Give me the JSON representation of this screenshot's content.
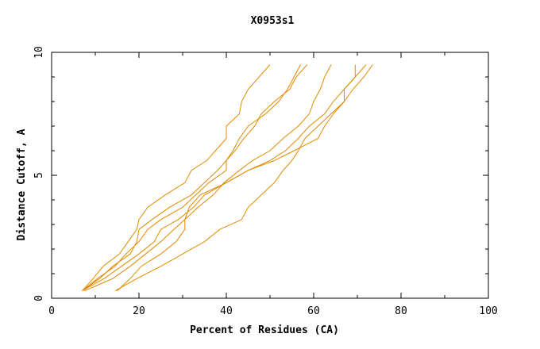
{
  "chart_data": {
    "type": "line",
    "title": "X0953s1",
    "xlabel": "Percent of Residues (CA)",
    "ylabel": "Distance Cutoff, A",
    "xlim": [
      0,
      100
    ],
    "ylim": [
      0,
      10
    ],
    "x_ticks": [
      0,
      20,
      40,
      60,
      80,
      100
    ],
    "y_ticks": [
      0,
      5,
      10
    ],
    "x_tick_labels": [
      "0",
      "20",
      "40",
      "60",
      "80",
      "100"
    ],
    "y_tick_labels": [
      "0",
      "5",
      "10"
    ],
    "grid": false,
    "line_color": "#e08a00",
    "series": [
      {
        "points": [
          [
            7.0,
            0.3
          ],
          [
            9.5,
            0.8
          ],
          [
            11.8,
            1.3
          ],
          [
            15.5,
            1.8
          ],
          [
            17.5,
            2.3
          ],
          [
            19.5,
            2.8
          ],
          [
            20.0,
            3.2
          ],
          [
            22.0,
            3.7
          ],
          [
            26.0,
            4.2
          ],
          [
            30.5,
            4.7
          ],
          [
            32.0,
            5.2
          ],
          [
            35.5,
            5.6
          ],
          [
            37.5,
            6.0
          ],
          [
            40.0,
            6.5
          ],
          [
            40.0,
            7.0
          ],
          [
            43.0,
            7.5
          ],
          [
            43.5,
            8.0
          ],
          [
            45.0,
            8.5
          ],
          [
            47.5,
            9.0
          ],
          [
            50.0,
            9.5
          ]
        ]
      },
      {
        "points": [
          [
            7.0,
            0.3
          ],
          [
            11.0,
            0.8
          ],
          [
            14.0,
            1.3
          ],
          [
            18.0,
            1.8
          ],
          [
            19.5,
            2.3
          ],
          [
            20.0,
            2.8
          ],
          [
            23.0,
            3.2
          ],
          [
            27.0,
            3.7
          ],
          [
            32.0,
            4.2
          ],
          [
            35.0,
            4.7
          ],
          [
            38.0,
            5.2
          ],
          [
            40.0,
            5.6
          ],
          [
            41.5,
            6.0
          ],
          [
            43.0,
            6.5
          ],
          [
            45.0,
            7.0
          ],
          [
            49.0,
            7.5
          ],
          [
            52.0,
            8.0
          ],
          [
            54.0,
            8.5
          ],
          [
            55.5,
            9.0
          ],
          [
            57.0,
            9.5
          ]
        ]
      },
      {
        "points": [
          [
            7.0,
            0.3
          ],
          [
            10.5,
            0.8
          ],
          [
            14.5,
            1.3
          ],
          [
            17.0,
            1.8
          ],
          [
            20.0,
            2.3
          ],
          [
            22.0,
            2.8
          ],
          [
            25.0,
            3.2
          ],
          [
            30.0,
            3.7
          ],
          [
            33.0,
            4.2
          ],
          [
            36.0,
            4.7
          ],
          [
            40.0,
            5.2
          ],
          [
            40.0,
            5.6
          ],
          [
            42.0,
            6.0
          ],
          [
            44.0,
            6.5
          ],
          [
            46.5,
            7.0
          ],
          [
            48.0,
            7.5
          ],
          [
            51.0,
            8.0
          ],
          [
            54.5,
            8.5
          ],
          [
            56.0,
            9.0
          ],
          [
            58.5,
            9.5
          ]
        ]
      },
      {
        "points": [
          [
            7.0,
            0.3
          ],
          [
            12.0,
            0.8
          ],
          [
            16.0,
            1.3
          ],
          [
            20.0,
            1.8
          ],
          [
            23.5,
            2.3
          ],
          [
            25.0,
            2.8
          ],
          [
            29.0,
            3.2
          ],
          [
            32.5,
            3.7
          ],
          [
            35.0,
            4.2
          ],
          [
            40.0,
            4.7
          ],
          [
            45.0,
            5.2
          ],
          [
            50.0,
            5.6
          ],
          [
            53.5,
            6.0
          ],
          [
            56.5,
            6.5
          ],
          [
            59.0,
            7.0
          ],
          [
            62.5,
            7.5
          ],
          [
            64.5,
            8.0
          ],
          [
            67.0,
            8.5
          ],
          [
            69.5,
            9.0
          ],
          [
            69.5,
            9.5
          ]
        ]
      },
      {
        "points": [
          [
            7.5,
            0.3
          ],
          [
            14.0,
            0.8
          ],
          [
            18.0,
            1.3
          ],
          [
            21.5,
            1.8
          ],
          [
            25.0,
            2.3
          ],
          [
            28.0,
            2.8
          ],
          [
            30.5,
            3.2
          ],
          [
            31.5,
            3.7
          ],
          [
            34.0,
            4.2
          ],
          [
            40.0,
            4.7
          ],
          [
            45.0,
            5.2
          ],
          [
            51.0,
            5.6
          ],
          [
            55.5,
            6.0
          ],
          [
            61.0,
            6.5
          ],
          [
            62.5,
            7.0
          ],
          [
            64.5,
            7.5
          ],
          [
            67.0,
            8.0
          ],
          [
            67.0,
            8.5
          ],
          [
            69.5,
            9.0
          ],
          [
            72.0,
            9.5
          ]
        ]
      },
      {
        "points": [
          [
            15.0,
            0.3
          ],
          [
            18.0,
            0.8
          ],
          [
            20.5,
            1.3
          ],
          [
            25.0,
            1.8
          ],
          [
            28.5,
            2.3
          ],
          [
            30.5,
            2.8
          ],
          [
            30.5,
            3.2
          ],
          [
            33.5,
            3.7
          ],
          [
            37.0,
            4.2
          ],
          [
            39.5,
            4.7
          ],
          [
            43.0,
            5.2
          ],
          [
            46.0,
            5.6
          ],
          [
            50.0,
            6.0
          ],
          [
            53.0,
            6.5
          ],
          [
            56.5,
            7.0
          ],
          [
            59.0,
            7.5
          ],
          [
            60.0,
            8.0
          ],
          [
            61.5,
            8.5
          ],
          [
            62.5,
            9.0
          ],
          [
            64.0,
            9.5
          ]
        ]
      },
      {
        "points": [
          [
            14.5,
            0.3
          ],
          [
            19.5,
            0.8
          ],
          [
            25.0,
            1.3
          ],
          [
            30.0,
            1.8
          ],
          [
            35.0,
            2.3
          ],
          [
            38.5,
            2.8
          ],
          [
            43.5,
            3.2
          ],
          [
            45.0,
            3.7
          ],
          [
            48.0,
            4.2
          ],
          [
            51.0,
            4.7
          ],
          [
            53.0,
            5.2
          ],
          [
            55.0,
            5.6
          ],
          [
            56.5,
            6.0
          ],
          [
            58.0,
            6.5
          ],
          [
            61.0,
            7.0
          ],
          [
            64.0,
            7.5
          ],
          [
            67.0,
            8.0
          ],
          [
            69.0,
            8.5
          ],
          [
            71.5,
            9.0
          ],
          [
            73.5,
            9.5
          ]
        ]
      }
    ]
  }
}
